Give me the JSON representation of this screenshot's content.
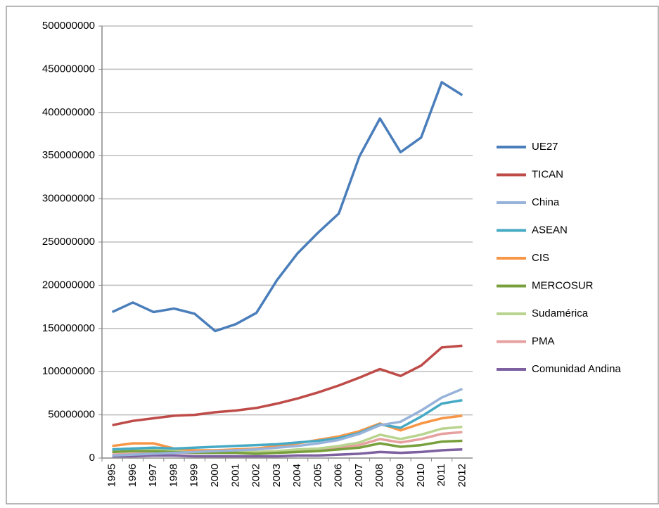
{
  "chart_data": {
    "type": "line",
    "categories": [
      "1995",
      "1996",
      "1997",
      "1998",
      "1999",
      "2000",
      "2001",
      "2002",
      "2003",
      "2004",
      "2005",
      "2006",
      "2007",
      "2008",
      "2009",
      "2010",
      "2011",
      "2012"
    ],
    "series": [
      {
        "name": "UE27",
        "color": "#4a7ebb",
        "values": [
          169000000,
          180000000,
          169000000,
          173000000,
          167000000,
          147000000,
          155000000,
          168000000,
          206000000,
          237000000,
          261000000,
          283000000,
          349000000,
          393000000,
          354000000,
          371000000,
          435000000,
          420000000
        ]
      },
      {
        "name": "TICAN",
        "color": "#be4b48",
        "values": [
          38000000,
          43000000,
          46000000,
          49000000,
          50000000,
          53000000,
          55000000,
          58000000,
          63000000,
          69000000,
          76000000,
          84000000,
          93000000,
          103000000,
          95000000,
          107000000,
          128000000,
          130000000
        ]
      },
      {
        "name": "China",
        "color": "#98b3d9",
        "values": [
          3000000,
          4000000,
          5000000,
          6000000,
          7000000,
          8000000,
          9000000,
          10000000,
          12000000,
          14000000,
          17000000,
          21000000,
          28000000,
          38000000,
          42000000,
          55000000,
          70000000,
          80000000
        ]
      },
      {
        "name": "ASEAN",
        "color": "#46aac5",
        "values": [
          10000000,
          11000000,
          12000000,
          11000000,
          12000000,
          13000000,
          14000000,
          15000000,
          16000000,
          18000000,
          20000000,
          23000000,
          29000000,
          39000000,
          35000000,
          48000000,
          63000000,
          67000000
        ]
      },
      {
        "name": "CIS",
        "color": "#f79646",
        "values": [
          14000000,
          17000000,
          17000000,
          11000000,
          9000000,
          9000000,
          10000000,
          11000000,
          14000000,
          17000000,
          21000000,
          25000000,
          31000000,
          40000000,
          32000000,
          40000000,
          46000000,
          49000000
        ]
      },
      {
        "name": "MERCOSUR",
        "color": "#77a03c",
        "values": [
          7000000,
          8000000,
          8000000,
          7000000,
          6000000,
          6000000,
          6000000,
          5000000,
          6000000,
          7000000,
          8000000,
          10000000,
          12000000,
          17000000,
          13000000,
          15000000,
          19000000,
          20000000
        ]
      },
      {
        "name": "Sudamérica",
        "color": "#b9d48e",
        "values": [
          10000000,
          11000000,
          11000000,
          10000000,
          8000000,
          8000000,
          8000000,
          7000000,
          8000000,
          10000000,
          11000000,
          14000000,
          18000000,
          27000000,
          22000000,
          27000000,
          34000000,
          36000000
        ]
      },
      {
        "name": "PMA",
        "color": "#e6a09f",
        "values": [
          4000000,
          5000000,
          6000000,
          6000000,
          6000000,
          7000000,
          7000000,
          7000000,
          8000000,
          9000000,
          10000000,
          12000000,
          15000000,
          22000000,
          18000000,
          22000000,
          28000000,
          30000000
        ]
      },
      {
        "name": "Comunidad Andina",
        "color": "#7d60a0",
        "values": [
          2000000,
          2000000,
          3000000,
          3000000,
          2000000,
          2000000,
          2000000,
          2000000,
          2000000,
          3000000,
          3000000,
          4000000,
          5000000,
          7000000,
          6000000,
          7000000,
          9000000,
          10000000
        ]
      }
    ],
    "ylim": [
      0,
      500000000
    ],
    "yticks": [
      0,
      50000000,
      100000000,
      150000000,
      200000000,
      250000000,
      300000000,
      350000000,
      400000000,
      450000000,
      500000000
    ],
    "grid": true,
    "legend": "right"
  }
}
